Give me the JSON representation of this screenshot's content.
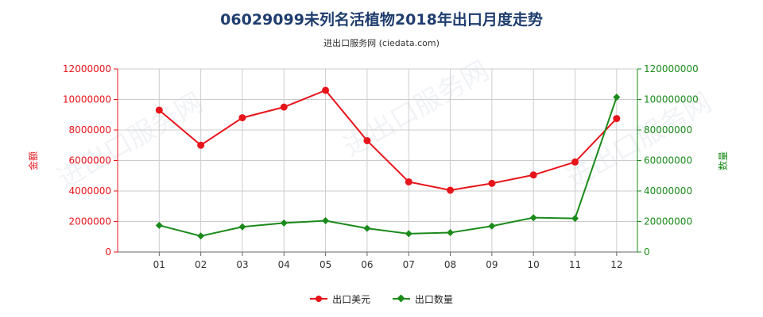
{
  "title": "06029099未列名活植物2018年出口月度走势",
  "subtitle": "进出口服务网 (ciedata.com)",
  "colors": {
    "series1": "#e8141b",
    "series2": "#1a8a1a",
    "title": "#1f3d6e",
    "grid": "#cccccc"
  },
  "legend": {
    "item1": "出口美元",
    "item2": "出口数量"
  },
  "chart_data": {
    "type": "line",
    "title": "06029099未列名活植物2018年出口月度走势",
    "categories": [
      "01",
      "02",
      "03",
      "04",
      "05",
      "06",
      "07",
      "08",
      "09",
      "10",
      "11",
      "12"
    ],
    "left_axis": {
      "label": "金额",
      "ylim": [
        0,
        12000000
      ],
      "ticks": [
        0,
        2000000,
        4000000,
        6000000,
        8000000,
        10000000,
        12000000
      ],
      "tick_labels": [
        "0",
        "2000000",
        "4000000",
        "6000000",
        "8000000",
        "10000000",
        "12000000"
      ]
    },
    "right_axis": {
      "label": "数量",
      "ylim": [
        0,
        120000000
      ],
      "ticks": [
        0,
        20000000,
        40000000,
        60000000,
        80000000,
        100000000,
        120000000
      ],
      "tick_labels": [
        "0",
        "20000000",
        "40000000",
        "60000000",
        "80000000",
        "100000000",
        "120000000"
      ]
    },
    "series": [
      {
        "name": "出口美元",
        "axis": "left",
        "marker": "circle",
        "values": [
          9300000,
          7000000,
          8800000,
          9500000,
          10600000,
          7300000,
          4600000,
          4050000,
          4500000,
          5050000,
          5900000,
          8750000
        ]
      },
      {
        "name": "出口数量",
        "axis": "right",
        "marker": "diamond",
        "values": [
          17500000,
          10500000,
          16500000,
          19000000,
          20500000,
          15500000,
          12000000,
          12700000,
          17000000,
          22500000,
          22000000,
          101500000
        ]
      }
    ],
    "grid": true,
    "legend_position": "bottom-center"
  }
}
